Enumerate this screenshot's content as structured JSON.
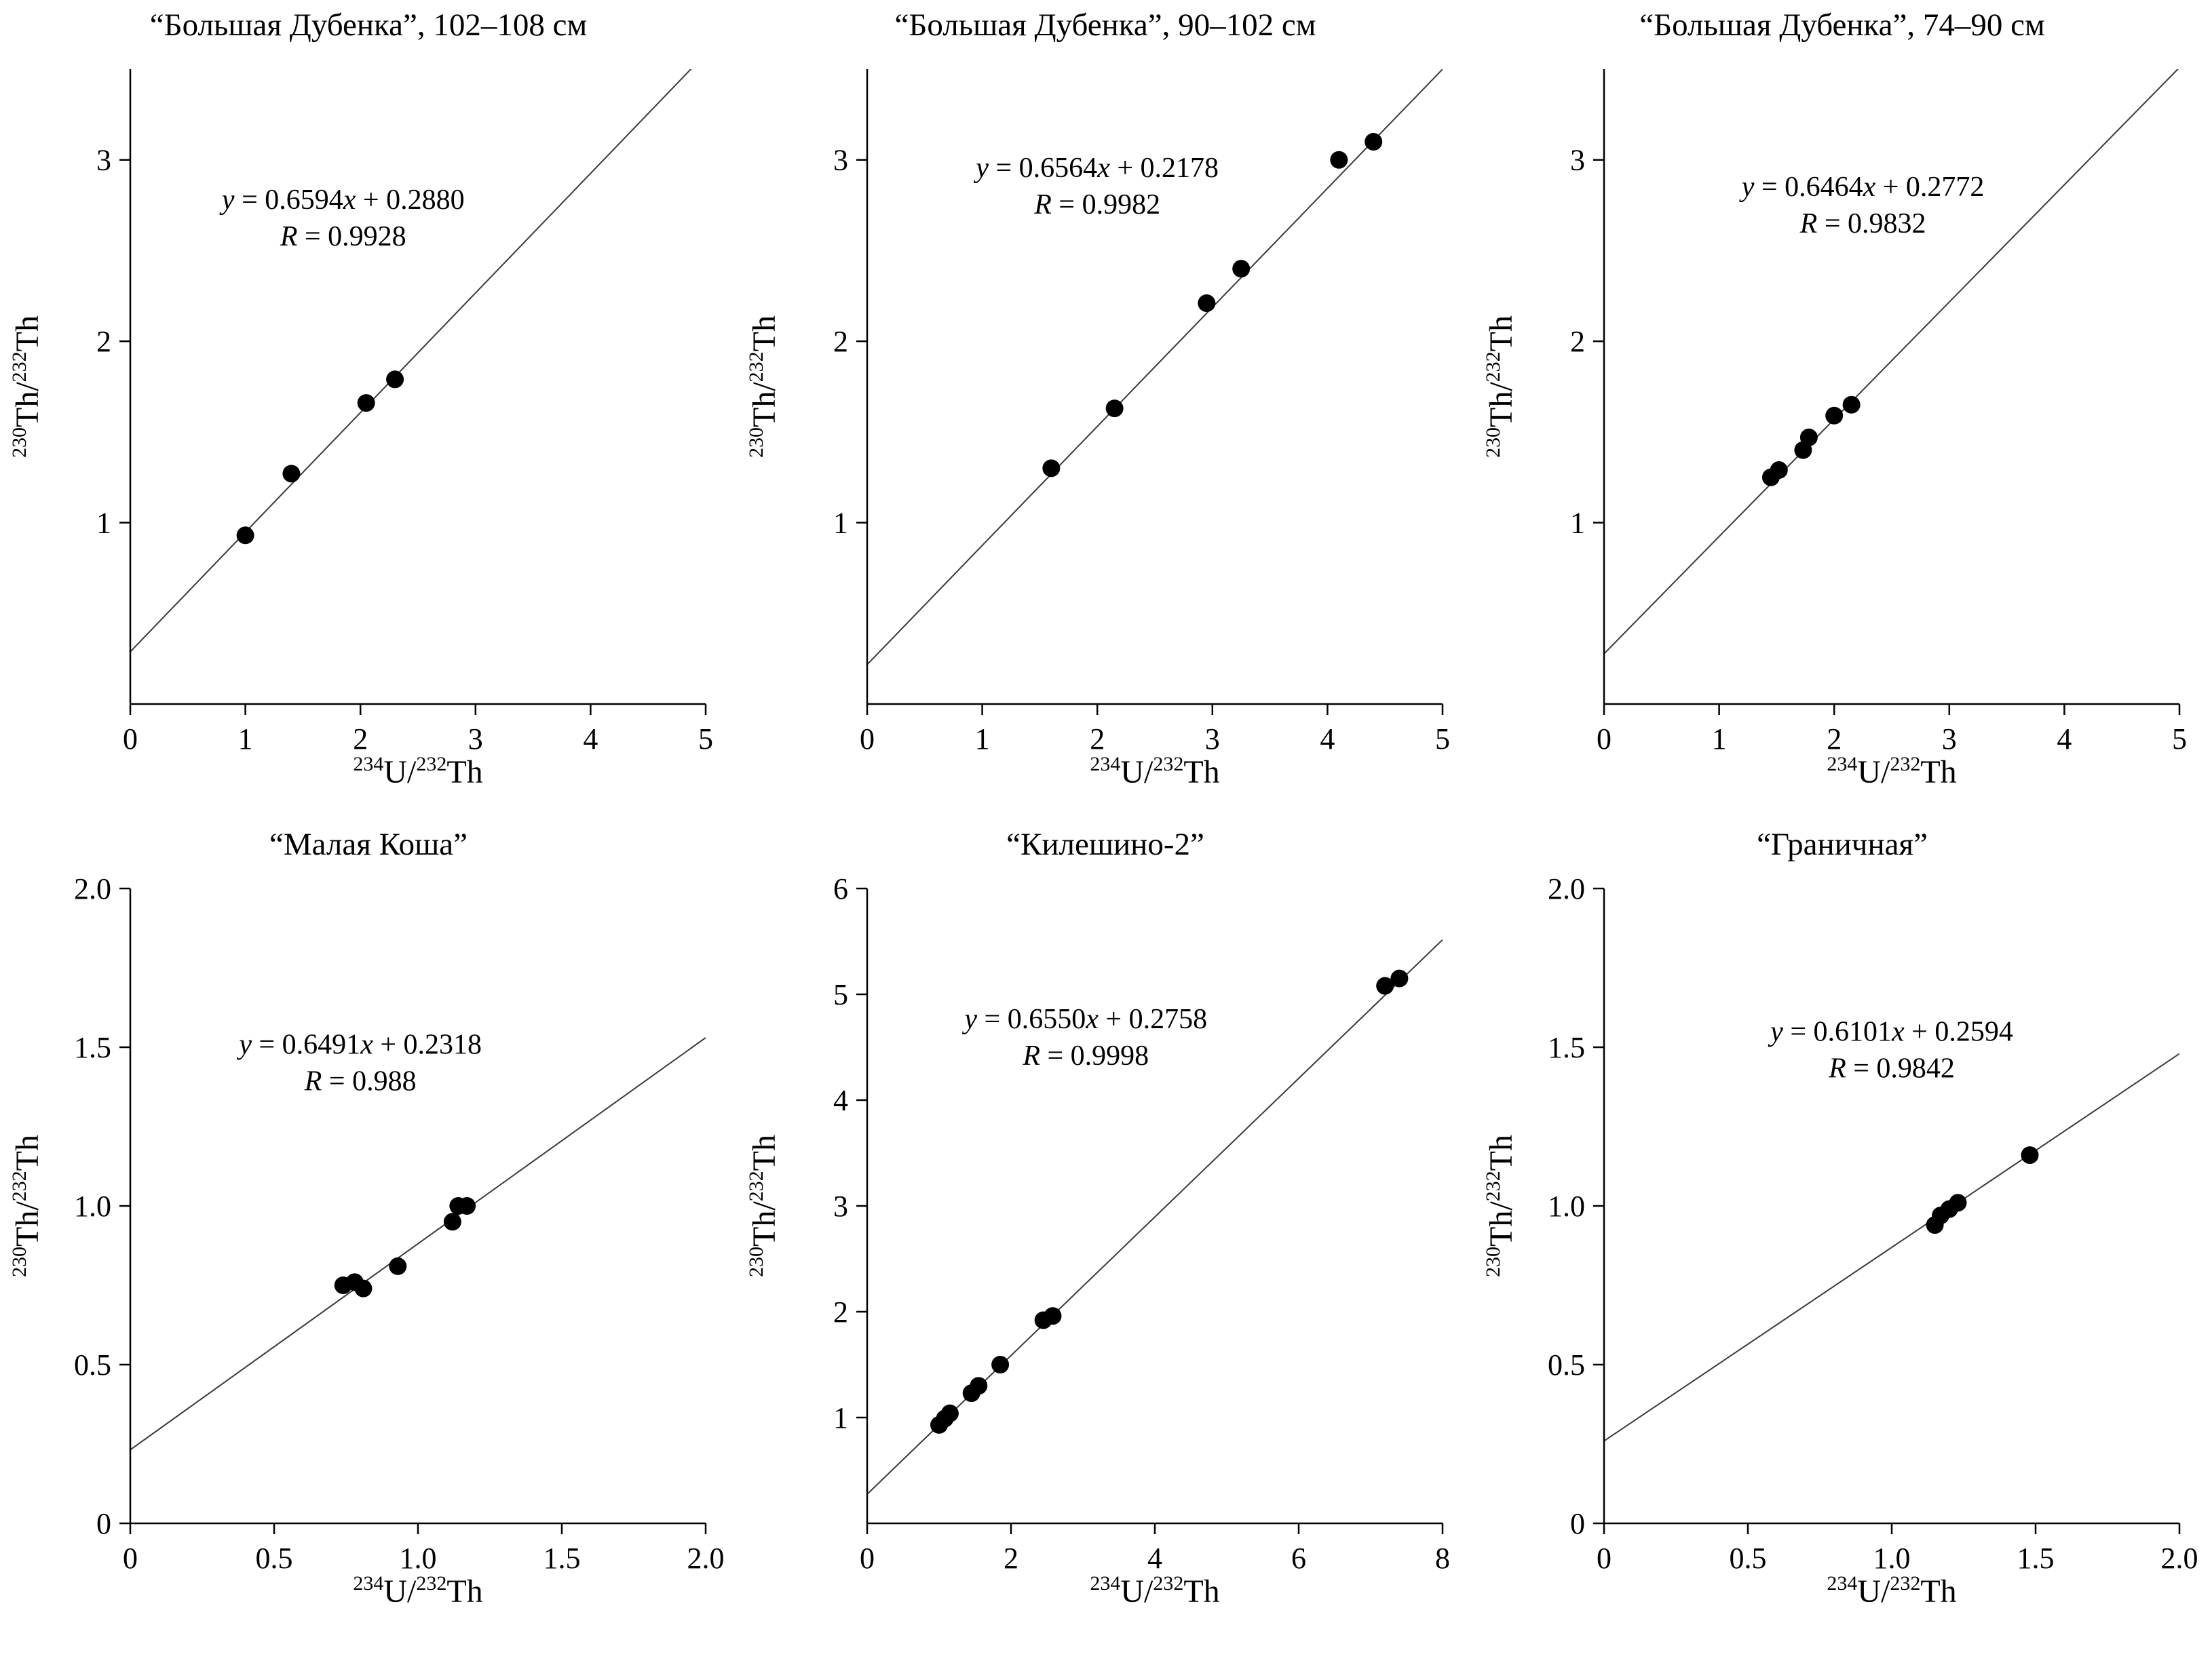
{
  "page": {
    "background": "#ffffff",
    "text_color": "#000000"
  },
  "chart_data": [
    {
      "type": "scatter",
      "title": "“Большая Дубенка”, 102–108 см",
      "xlabel": "^{234}U/^{232}Th",
      "ylabel": "^{230}Th/^{232}Th",
      "xlim": [
        0,
        5
      ],
      "ylim": [
        0,
        3.5
      ],
      "xticks": {
        "values": [
          0,
          1,
          2,
          3,
          4,
          5
        ],
        "labels": [
          "0",
          "1",
          "2",
          "3",
          "4",
          "5"
        ]
      },
      "yticks": {
        "values": [
          1,
          2,
          3
        ],
        "labels": [
          "1",
          "2",
          "3"
        ]
      },
      "equation": "y = 0.6594x + 0.2880",
      "r_label": "R = 0.9928",
      "slope": 0.6594,
      "intercept": 0.288,
      "points": [
        [
          1.0,
          0.93
        ],
        [
          1.4,
          1.27
        ],
        [
          2.05,
          1.66
        ],
        [
          2.3,
          1.79
        ]
      ],
      "annotation_pos": {
        "fx": 0.37,
        "fy": 0.22
      },
      "marker_color": "#000000",
      "line_color": "#3a3a3a",
      "grid": false,
      "legend": "none"
    },
    {
      "type": "scatter",
      "title": "“Большая Дубенка”, 90–102 см",
      "xlabel": "^{234}U/^{232}Th",
      "ylabel": "^{230}Th/^{232}Th",
      "xlim": [
        0,
        5
      ],
      "ylim": [
        0,
        3.5
      ],
      "xticks": {
        "values": [
          0,
          1,
          2,
          3,
          4,
          5
        ],
        "labels": [
          "0",
          "1",
          "2",
          "3",
          "4",
          "5"
        ]
      },
      "yticks": {
        "values": [
          1,
          2,
          3
        ],
        "labels": [
          "1",
          "2",
          "3"
        ]
      },
      "equation": "y = 0.6564x + 0.2178",
      "r_label": "R = 0.9982",
      "slope": 0.6564,
      "intercept": 0.2178,
      "points": [
        [
          1.6,
          1.3
        ],
        [
          2.15,
          1.63
        ],
        [
          2.95,
          2.21
        ],
        [
          3.25,
          2.4
        ],
        [
          4.1,
          3.0
        ],
        [
          4.4,
          3.1
        ]
      ],
      "annotation_pos": {
        "fx": 0.4,
        "fy": 0.17
      },
      "marker_color": "#000000",
      "line_color": "#3a3a3a",
      "grid": false,
      "legend": "none"
    },
    {
      "type": "scatter",
      "title": "“Большая Дубенка”, 74–90 см",
      "xlabel": "^{234}U/^{232}Th",
      "ylabel": "^{230}Th/^{232}Th",
      "xlim": [
        0,
        5
      ],
      "ylim": [
        0,
        3.5
      ],
      "xticks": {
        "values": [
          0,
          1,
          2,
          3,
          4,
          5
        ],
        "labels": [
          "0",
          "1",
          "2",
          "3",
          "4",
          "5"
        ]
      },
      "yticks": {
        "values": [
          1,
          2,
          3
        ],
        "labels": [
          "1",
          "2",
          "3"
        ]
      },
      "equation": "y = 0.6464x + 0.2772",
      "r_label": "R = 0.9832",
      "slope": 0.6464,
      "intercept": 0.2772,
      "points": [
        [
          1.45,
          1.25
        ],
        [
          1.52,
          1.29
        ],
        [
          1.73,
          1.4
        ],
        [
          1.78,
          1.47
        ],
        [
          2.0,
          1.59
        ],
        [
          2.15,
          1.65
        ]
      ],
      "annotation_pos": {
        "fx": 0.45,
        "fy": 0.2
      },
      "marker_color": "#000000",
      "line_color": "#3a3a3a",
      "grid": false,
      "legend": "none"
    },
    {
      "type": "scatter",
      "title": "“Малая Коша”",
      "xlabel": "^{234}U/^{232}Th",
      "ylabel": "^{230}Th/^{232}Th",
      "xlim": [
        0,
        2
      ],
      "ylim": [
        0,
        2
      ],
      "xticks": {
        "values": [
          0,
          0.5,
          1,
          1.5,
          2
        ],
        "labels": [
          "0",
          "0.5",
          "1.0",
          "1.5",
          "2.0"
        ]
      },
      "yticks": {
        "values": [
          0,
          0.5,
          1,
          1.5,
          2
        ],
        "labels": [
          "0",
          "0.5",
          "1.0",
          "1.5",
          "2.0"
        ]
      },
      "equation": "y = 0.6491x + 0.2318",
      "r_label": "R = 0.988",
      "slope": 0.6491,
      "intercept": 0.2318,
      "points": [
        [
          0.74,
          0.75
        ],
        [
          0.78,
          0.76
        ],
        [
          0.81,
          0.74
        ],
        [
          0.93,
          0.81
        ],
        [
          1.12,
          0.95
        ],
        [
          1.14,
          1.0
        ],
        [
          1.17,
          1.0
        ]
      ],
      "annotation_pos": {
        "fx": 0.4,
        "fy": 0.26
      },
      "marker_color": "#000000",
      "line_color": "#3a3a3a",
      "grid": false,
      "legend": "none"
    },
    {
      "type": "scatter",
      "title": "“Килешино-2”",
      "xlabel": "^{234}U/^{232}Th",
      "ylabel": "^{230}Th/^{232}Th",
      "xlim": [
        0,
        8
      ],
      "ylim": [
        0,
        6
      ],
      "xticks": {
        "values": [
          0,
          2,
          4,
          6,
          8
        ],
        "labels": [
          "0",
          "2",
          "4",
          "6",
          "8"
        ]
      },
      "yticks": {
        "values": [
          1,
          2,
          3,
          4,
          5,
          6
        ],
        "labels": [
          "1",
          "2",
          "3",
          "4",
          "5",
          "6"
        ]
      },
      "equation": "y = 0.6550x + 0.2758",
      "r_label": "R = 0.9998",
      "slope": 0.655,
      "intercept": 0.2758,
      "points": [
        [
          1.0,
          0.93
        ],
        [
          1.08,
          0.99
        ],
        [
          1.15,
          1.04
        ],
        [
          1.45,
          1.23
        ],
        [
          1.55,
          1.3
        ],
        [
          1.85,
          1.5
        ],
        [
          2.45,
          1.92
        ],
        [
          2.58,
          1.96
        ],
        [
          7.2,
          5.08
        ],
        [
          7.4,
          5.15
        ]
      ],
      "annotation_pos": {
        "fx": 0.38,
        "fy": 0.22
      },
      "marker_color": "#000000",
      "line_color": "#3a3a3a",
      "grid": false,
      "legend": "none"
    },
    {
      "type": "scatter",
      "title": "“Граничная”",
      "xlabel": "^{234}U/^{232}Th",
      "ylabel": "^{230}Th/^{232}Th",
      "xlim": [
        0,
        2
      ],
      "ylim": [
        0,
        2
      ],
      "xticks": {
        "values": [
          0,
          0.5,
          1,
          1.5,
          2
        ],
        "labels": [
          "0",
          "0.5",
          "1.0",
          "1.5",
          "2.0"
        ]
      },
      "yticks": {
        "values": [
          0,
          0.5,
          1,
          1.5,
          2
        ],
        "labels": [
          "0",
          "0.5",
          "1.0",
          "1.5",
          "2.0"
        ]
      },
      "equation": "y = 0.6101x + 0.2594",
      "r_label": "R = 0.9842",
      "slope": 0.6101,
      "intercept": 0.2594,
      "points": [
        [
          1.15,
          0.94
        ],
        [
          1.17,
          0.97
        ],
        [
          1.2,
          0.99
        ],
        [
          1.23,
          1.01
        ],
        [
          1.48,
          1.16
        ]
      ],
      "annotation_pos": {
        "fx": 0.5,
        "fy": 0.24
      },
      "marker_color": "#000000",
      "line_color": "#3a3a3a",
      "grid": false,
      "legend": "none"
    }
  ]
}
